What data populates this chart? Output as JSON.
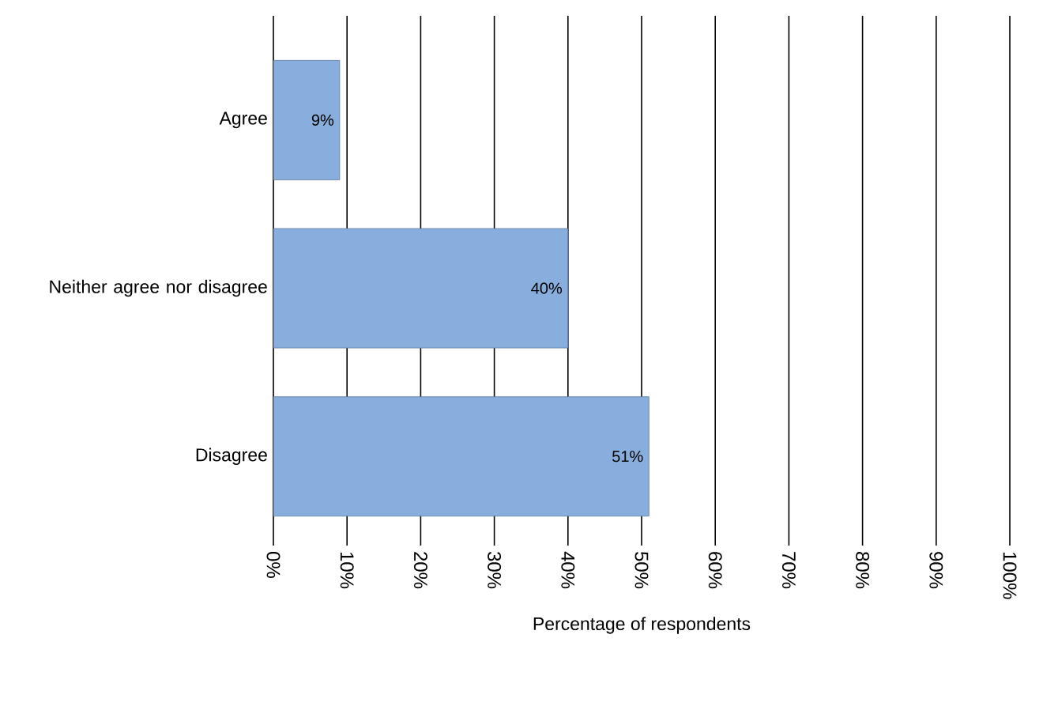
{
  "chart_data": {
    "type": "bar",
    "orientation": "horizontal",
    "xlabel": "Percentage of respondents",
    "categories": [
      "Agree",
      "Neither agree nor disagree",
      "Disagree"
    ],
    "values": [
      9,
      40,
      51
    ],
    "value_labels": [
      "9%",
      "40%",
      "51%"
    ],
    "color": "#87aedd",
    "xlim": [
      0,
      100
    ],
    "xticks": [
      {
        "value": 0,
        "label": "0%"
      },
      {
        "value": 10,
        "label": "10%"
      },
      {
        "value": 20,
        "label": "20%"
      },
      {
        "value": 30,
        "label": "30%"
      },
      {
        "value": 40,
        "label": "40%"
      },
      {
        "value": 50,
        "label": "50%"
      },
      {
        "value": 60,
        "label": "60%"
      },
      {
        "value": 70,
        "label": "70%"
      },
      {
        "value": 80,
        "label": "80%"
      },
      {
        "value": 90,
        "label": "90%"
      },
      {
        "value": 100,
        "label": "100%"
      }
    ],
    "grid": "x"
  }
}
